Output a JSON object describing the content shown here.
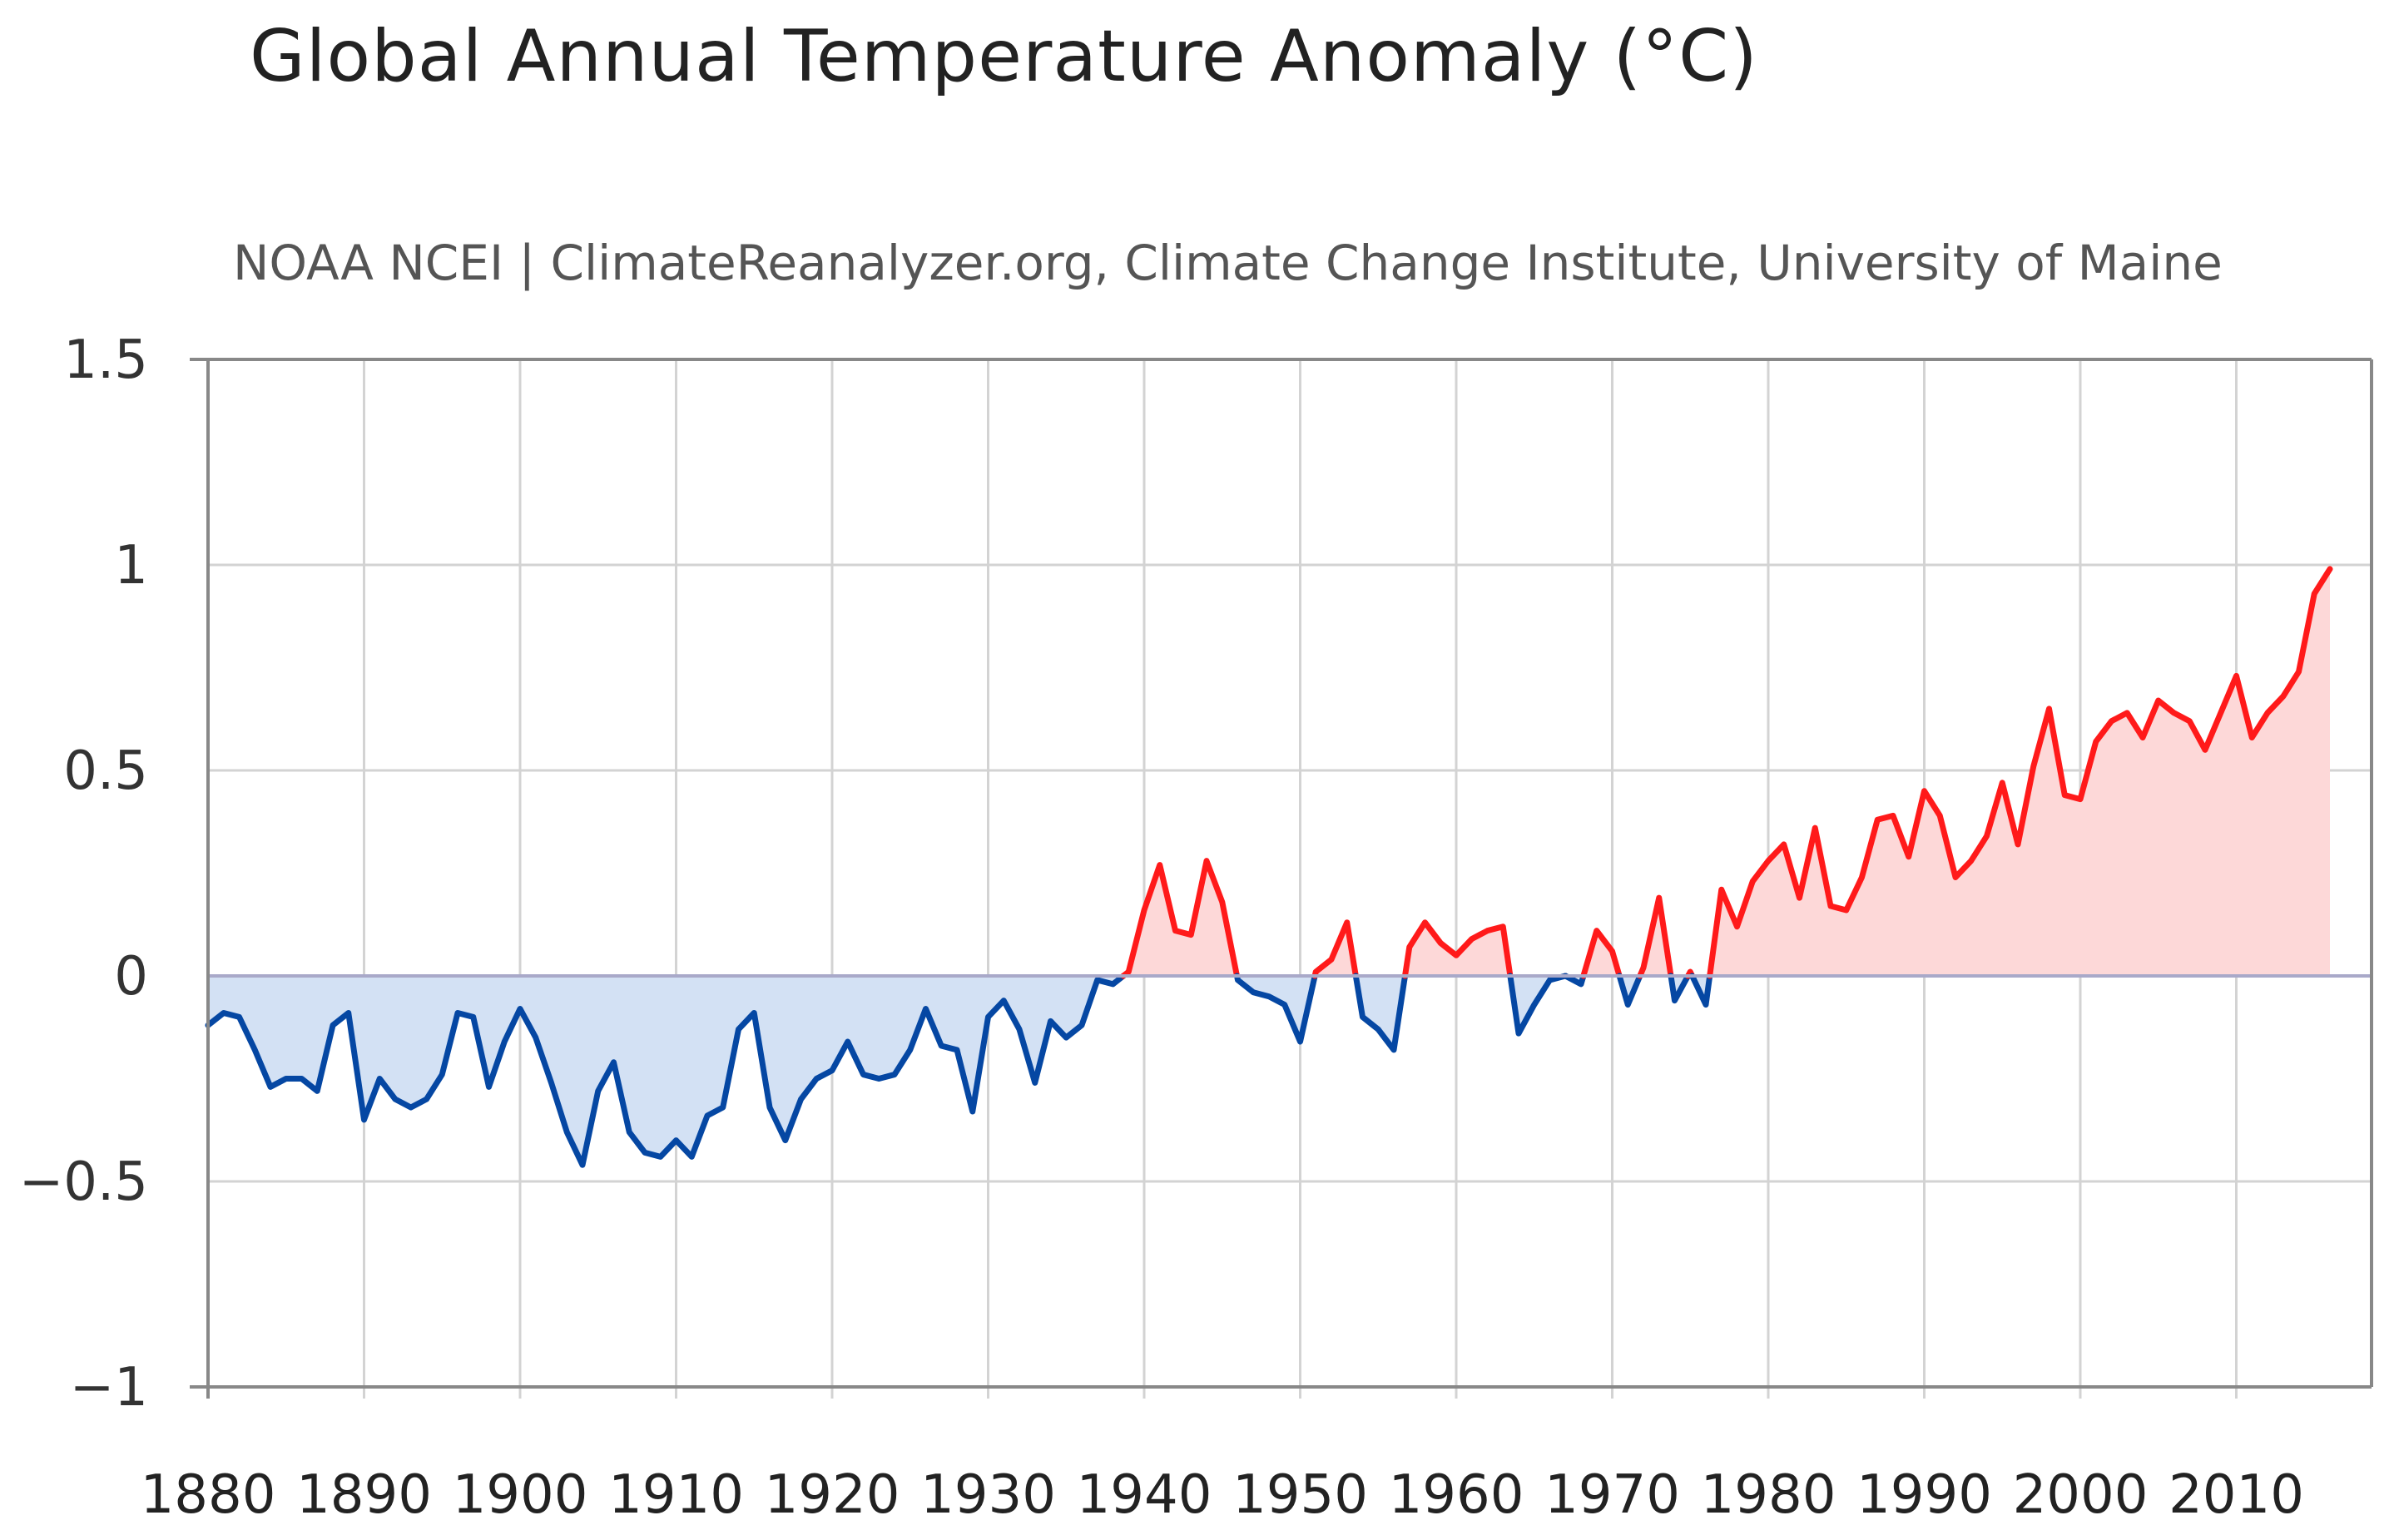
{
  "chart_data": {
    "type": "area",
    "title": "Global Annual Temperature Anomaly (°C)",
    "subtitle": "NOAA NCEI | ClimateReanalyzer.org, Climate Change Institute, University of Maine",
    "xlabel": "",
    "ylabel": "",
    "xlim": [
      1880,
      2016
    ],
    "ylim": [
      -1,
      1.5
    ],
    "grid": true,
    "y_ticks": [
      {
        "value": 1.5,
        "label": "1.5"
      },
      {
        "value": 1,
        "label": "1"
      },
      {
        "value": 0.5,
        "label": "0.5"
      },
      {
        "value": 0,
        "label": "0"
      },
      {
        "value": -0.5,
        "label": "−0.5"
      },
      {
        "value": -1,
        "label": "−1"
      }
    ],
    "x_ticks": [
      {
        "value": 1880,
        "label": "1880"
      },
      {
        "value": 1890,
        "label": "1890"
      },
      {
        "value": 1900,
        "label": "1900"
      },
      {
        "value": 1910,
        "label": "1910"
      },
      {
        "value": 1920,
        "label": "1920"
      },
      {
        "value": 1930,
        "label": "1930"
      },
      {
        "value": 1940,
        "label": "1940"
      },
      {
        "value": 1950,
        "label": "1950"
      },
      {
        "value": 1960,
        "label": "1960"
      },
      {
        "value": 1970,
        "label": "1970"
      },
      {
        "value": 1980,
        "label": "1980"
      },
      {
        "value": 1990,
        "label": "1990"
      },
      {
        "value": 2000,
        "label": "2000"
      },
      {
        "value": 2010,
        "label": "2010"
      }
    ],
    "colors": {
      "positive_line": "#ff1a1a",
      "positive_fill": "#fdd8d8",
      "negative_line": "#0547a3",
      "negative_fill": "#d3e1f4",
      "grid": "#d3d3d3",
      "axis": "#888888",
      "zero_line": "#a9a9c9"
    },
    "series": [
      {
        "name": "Global Annual Temperature Anomaly",
        "x": [
          1880,
          1881,
          1882,
          1883,
          1884,
          1885,
          1886,
          1887,
          1888,
          1889,
          1890,
          1891,
          1892,
          1893,
          1894,
          1895,
          1896,
          1897,
          1898,
          1899,
          1900,
          1901,
          1902,
          1903,
          1904,
          1905,
          1906,
          1907,
          1908,
          1909,
          1910,
          1911,
          1912,
          1913,
          1914,
          1915,
          1916,
          1917,
          1918,
          1919,
          1920,
          1921,
          1922,
          1923,
          1924,
          1925,
          1926,
          1927,
          1928,
          1929,
          1930,
          1931,
          1932,
          1933,
          1934,
          1935,
          1936,
          1937,
          1938,
          1939,
          1940,
          1941,
          1942,
          1943,
          1944,
          1945,
          1946,
          1947,
          1948,
          1949,
          1950,
          1951,
          1952,
          1953,
          1954,
          1955,
          1956,
          1957,
          1958,
          1959,
          1960,
          1961,
          1962,
          1963,
          1964,
          1965,
          1966,
          1967,
          1968,
          1969,
          1970,
          1971,
          1972,
          1973,
          1974,
          1975,
          1976,
          1977,
          1978,
          1979,
          1980,
          1981,
          1982,
          1983,
          1984,
          1985,
          1986,
          1987,
          1988,
          1989,
          1990,
          1991,
          1992,
          1993,
          1994,
          1995,
          1996,
          1997,
          1998,
          1999,
          2000,
          2001,
          2002,
          2003,
          2004,
          2005,
          2006,
          2007,
          2008,
          2009,
          2010,
          2011,
          2012,
          2013,
          2014,
          2015,
          2016
        ],
        "values": [
          -0.12,
          -0.09,
          -0.1,
          -0.18,
          -0.27,
          -0.25,
          -0.25,
          -0.28,
          -0.12,
          -0.09,
          -0.35,
          -0.25,
          -0.3,
          -0.32,
          -0.3,
          -0.24,
          -0.09,
          -0.1,
          -0.27,
          -0.16,
          -0.08,
          -0.15,
          -0.26,
          -0.38,
          -0.46,
          -0.28,
          -0.21,
          -0.38,
          -0.43,
          -0.44,
          -0.4,
          -0.44,
          -0.34,
          -0.32,
          -0.13,
          -0.09,
          -0.32,
          -0.4,
          -0.3,
          -0.25,
          -0.23,
          -0.16,
          -0.24,
          -0.25,
          -0.24,
          -0.18,
          -0.08,
          -0.17,
          -0.18,
          -0.33,
          -0.1,
          -0.06,
          -0.13,
          -0.26,
          -0.11,
          -0.15,
          -0.12,
          -0.01,
          -0.02,
          0.01,
          0.16,
          0.27,
          0.11,
          0.1,
          0.28,
          0.18,
          -0.01,
          -0.04,
          -0.05,
          -0.07,
          -0.16,
          0.01,
          0.04,
          0.13,
          -0.1,
          -0.13,
          -0.18,
          0.07,
          0.13,
          0.08,
          0.05,
          0.09,
          0.11,
          0.12,
          -0.14,
          -0.07,
          -0.01,
          0.0,
          -0.02,
          0.11,
          0.06,
          -0.07,
          0.02,
          0.19,
          -0.06,
          0.01,
          -0.07,
          0.21,
          0.12,
          0.23,
          0.28,
          0.32,
          0.19,
          0.36,
          0.17,
          0.16,
          0.24,
          0.38,
          0.39,
          0.29,
          0.45,
          0.39,
          0.24,
          0.28,
          0.34,
          0.47,
          0.32,
          0.51,
          0.65,
          0.44,
          0.43,
          0.57,
          0.62,
          0.64,
          0.58,
          0.67,
          0.64,
          0.62,
          0.55,
          0.64,
          0.73,
          0.58,
          0.64,
          0.68,
          0.74,
          0.93,
          0.99
        ]
      }
    ]
  }
}
